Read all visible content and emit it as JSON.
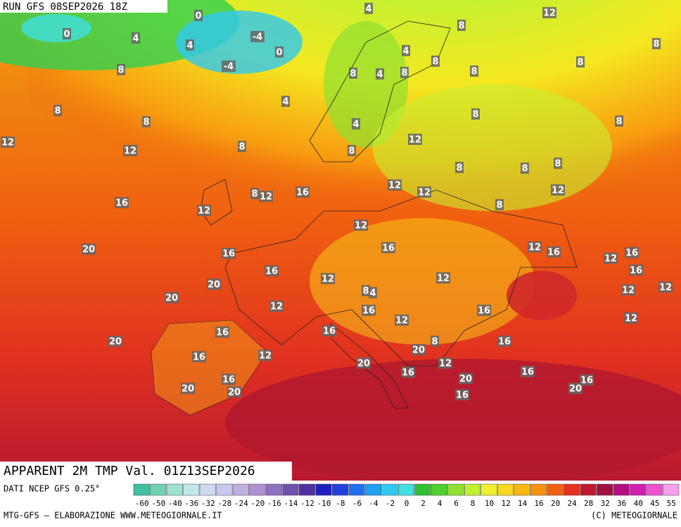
{
  "header": {
    "run": "RUN GFS 08SEP2026 18Z"
  },
  "title": "APPARENT 2M TMP Val. 01Z13SEP2026",
  "map": {
    "labels": [
      0,
      0,
      4,
      4,
      -4,
      0,
      -4,
      4,
      12,
      8,
      8,
      8,
      8,
      4,
      8,
      4,
      8,
      8,
      8,
      4,
      8,
      8,
      8,
      8,
      4,
      12,
      12,
      8,
      8,
      12,
      8,
      8,
      8,
      12,
      12,
      12,
      8,
      12,
      16,
      16,
      12,
      8,
      12,
      20,
      16,
      16,
      12,
      16,
      12,
      16,
      16,
      16,
      12,
      12,
      20,
      20,
      12,
      8,
      4,
      16,
      12,
      12,
      16,
      12,
      12,
      16,
      20,
      16,
      20,
      8,
      16,
      12,
      16,
      20,
      12,
      16,
      16,
      16,
      20,
      16,
      20,
      20,
      20,
      16
    ]
  },
  "scale": {
    "ticks": [
      -60,
      -50,
      -40,
      -36,
      -32,
      -28,
      -24,
      -20,
      -16,
      -14,
      -12,
      -10,
      -8,
      -6,
      -4,
      -2,
      0,
      2,
      4,
      6,
      8,
      10,
      12,
      14,
      16,
      20,
      24,
      28,
      32,
      36,
      40,
      45,
      55
    ],
    "colors": [
      "#40c0a0",
      "#70d0b0",
      "#a0e0d0",
      "#c0e8e8",
      "#d0d8f0",
      "#c8c8f0",
      "#c0b0e0",
      "#b090d0",
      "#9070c0",
      "#7050b0",
      "#5030a0",
      "#2020c0",
      "#2040e0",
      "#2070f0",
      "#20a0f0",
      "#30c8f0",
      "#40e0e0",
      "#30c030",
      "#50d030",
      "#90e030",
      "#c0f030",
      "#f0f030",
      "#f8d820",
      "#f8b810",
      "#f89010",
      "#f06010",
      "#e83020",
      "#c01830",
      "#a01040",
      "#b01080",
      "#d020b0",
      "#f050d0",
      "#f8a0f0"
    ]
  },
  "footer": {
    "source": "DATI NCEP GFS 0.25°",
    "credit": "MTG-GFS — ELABORAZIONE WWW.METEOGIORNALE.IT",
    "copyright": "(C) METEOGIORNALE"
  }
}
